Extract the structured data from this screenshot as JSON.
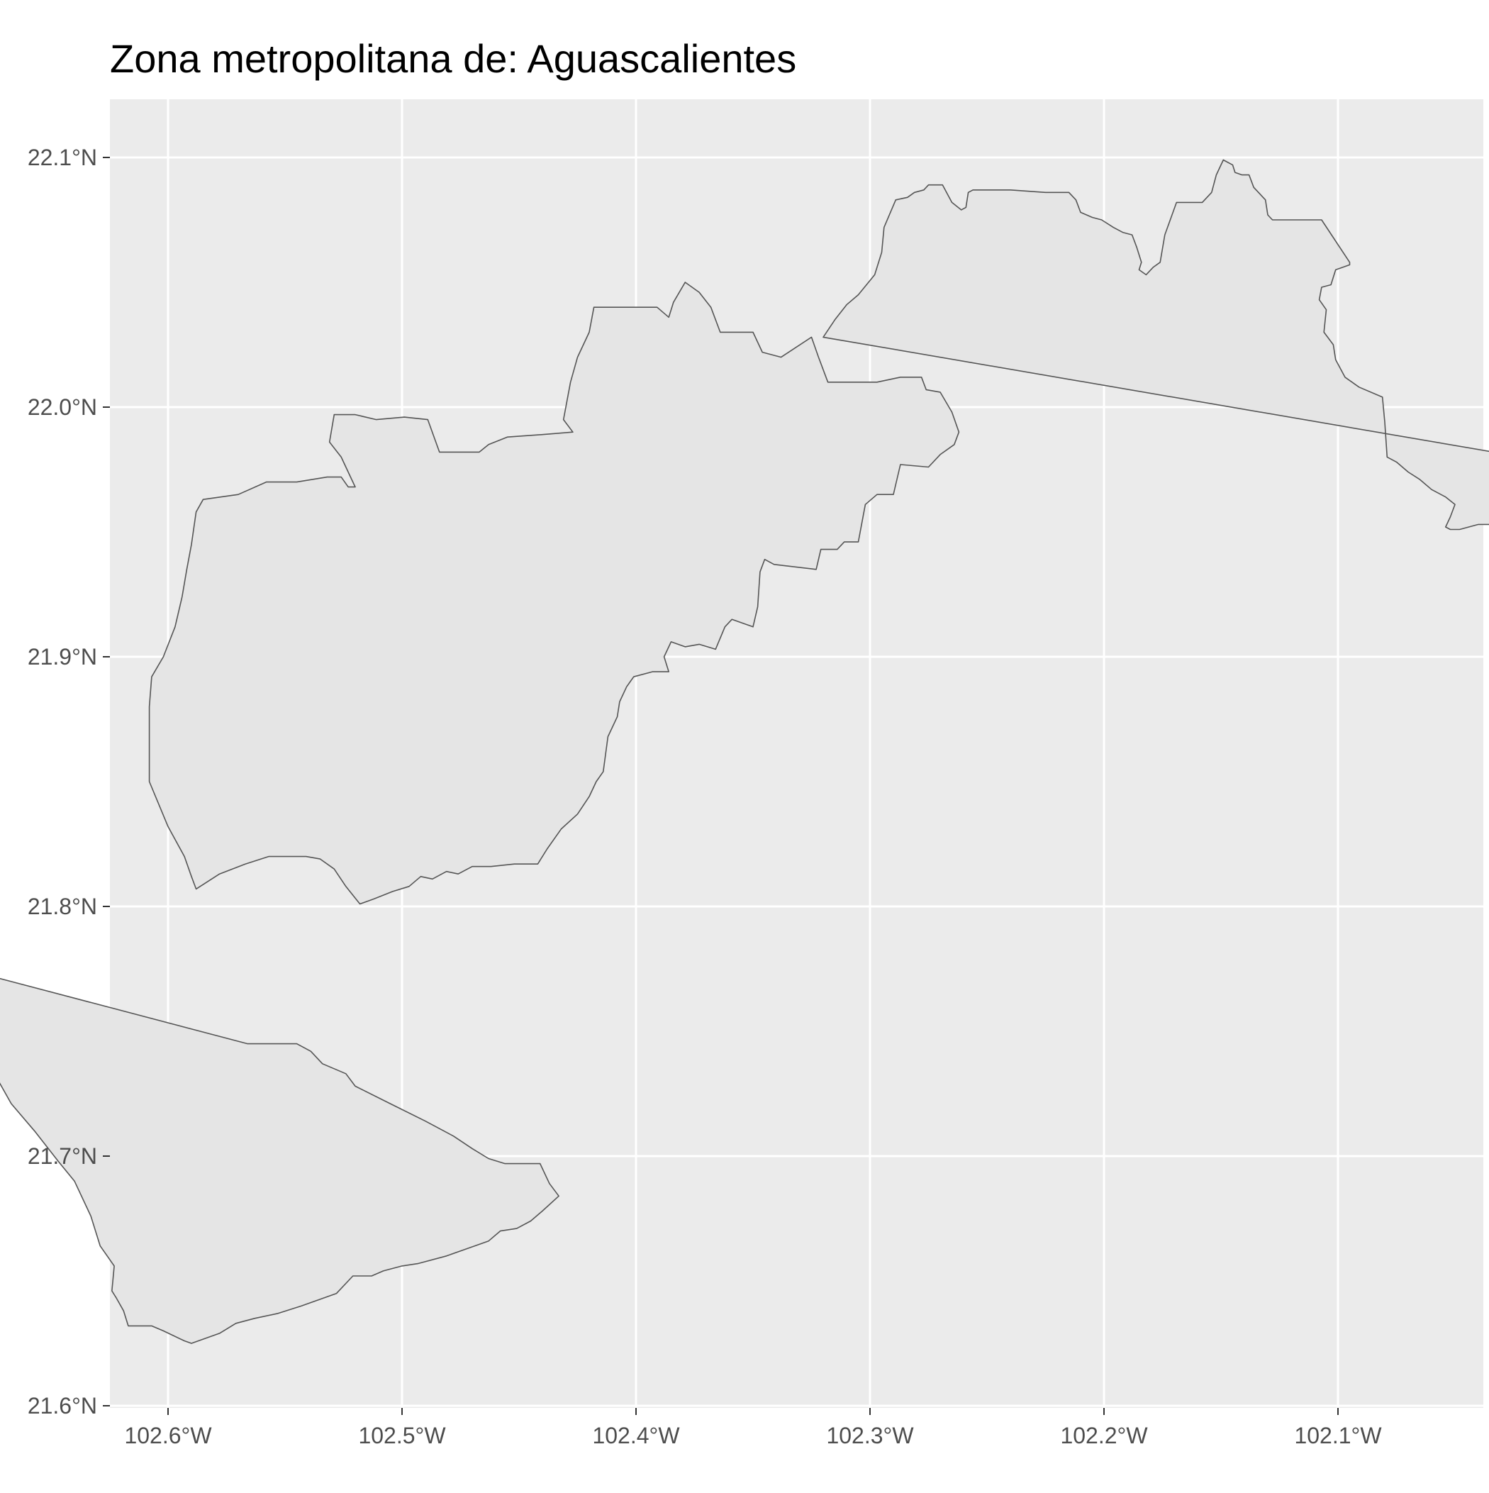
{
  "title": "Zona metropolitana de: Aguascalientes",
  "colors": {
    "panel_background": "#ebebeb",
    "gridline": "#ffffff",
    "polygon_fill": "#e5e5e5",
    "polygon_stroke": "#555555",
    "tick_text": "#4d4d4d",
    "title_text": "#000000"
  },
  "chart_data": {
    "type": "map",
    "title": "Zona metropolitana de: Aguascalientes",
    "x_ticks": [
      {
        "value": -102.6,
        "label": "102.6°W"
      },
      {
        "value": -102.5,
        "label": "102.5°W"
      },
      {
        "value": -102.4,
        "label": "102.4°W"
      },
      {
        "value": -102.3,
        "label": "102.3°W"
      },
      {
        "value": -102.2,
        "label": "102.2°W"
      },
      {
        "value": -102.1,
        "label": "102.1°W"
      }
    ],
    "y_ticks": [
      {
        "value": 21.6,
        "label": "21.6°N"
      },
      {
        "value": 21.7,
        "label": "21.7°N"
      },
      {
        "value": 21.8,
        "label": "21.8°N"
      },
      {
        "value": 21.9,
        "label": "21.9°N"
      },
      {
        "value": 22.0,
        "label": "22.0°N"
      },
      {
        "value": 22.1,
        "label": "22.1°N"
      }
    ],
    "xlim": [
      -102.624,
      -102.038
    ],
    "ylim": [
      21.597,
      22.123
    ],
    "grid": true,
    "regions": [
      {
        "coords": [
          [
            -102.588,
            21.807
          ],
          [
            -102.578,
            21.813
          ],
          [
            -102.567,
            21.817
          ],
          [
            -102.557,
            21.82
          ],
          [
            -102.548,
            21.82
          ],
          [
            -102.541,
            21.82
          ],
          [
            -102.535,
            21.819
          ],
          [
            -102.529,
            21.815
          ],
          [
            -102.524,
            21.808
          ],
          [
            -102.518,
            21.801
          ],
          [
            -102.512,
            21.803
          ],
          [
            -102.504,
            21.806
          ],
          [
            -102.497,
            21.808
          ],
          [
            -102.492,
            21.812
          ],
          [
            -102.487,
            21.811
          ],
          [
            -102.481,
            21.814
          ],
          [
            -102.476,
            21.813
          ],
          [
            -102.47,
            21.816
          ],
          [
            -102.462,
            21.816
          ],
          [
            -102.452,
            21.817
          ],
          [
            -102.442,
            21.817
          ],
          [
            -102.438,
            21.823
          ],
          [
            -102.432,
            21.831
          ],
          [
            -102.425,
            21.837
          ],
          [
            -102.42,
            21.844
          ],
          [
            -102.417,
            21.85
          ],
          [
            -102.414,
            21.854
          ],
          [
            -102.413,
            21.861
          ],
          [
            -102.412,
            21.868
          ],
          [
            -102.408,
            21.876
          ],
          [
            -102.407,
            21.882
          ],
          [
            -102.404,
            21.888
          ],
          [
            -102.401,
            21.892
          ],
          [
            -102.393,
            21.894
          ],
          [
            -102.386,
            21.894
          ],
          [
            -102.388,
            21.9
          ],
          [
            -102.385,
            21.906
          ],
          [
            -102.379,
            21.904
          ],
          [
            -102.373,
            21.905
          ],
          [
            -102.366,
            21.903
          ],
          [
            -102.362,
            21.912
          ],
          [
            -102.359,
            21.915
          ],
          [
            -102.35,
            21.912
          ],
          [
            -102.348,
            21.92
          ],
          [
            -102.347,
            21.934
          ],
          [
            -102.345,
            21.939
          ],
          [
            -102.341,
            21.937
          ],
          [
            -102.323,
            21.935
          ],
          [
            -102.321,
            21.943
          ],
          [
            -102.314,
            21.943
          ],
          [
            -102.311,
            21.946
          ],
          [
            -102.305,
            21.946
          ],
          [
            -102.302,
            21.961
          ],
          [
            -102.297,
            21.965
          ],
          [
            -102.29,
            21.965
          ],
          [
            -102.287,
            21.977
          ],
          [
            -102.275,
            21.976
          ],
          [
            -102.27,
            21.981
          ],
          [
            -102.264,
            21.985
          ],
          [
            -102.262,
            21.99
          ],
          [
            -102.265,
            21.998
          ],
          [
            -102.27,
            22.006
          ],
          [
            -102.276,
            22.007
          ],
          [
            -102.278,
            22.012
          ],
          [
            -102.287,
            22.012
          ],
          [
            -102.297,
            22.01
          ],
          [
            -102.308,
            22.01
          ],
          [
            -102.318,
            22.01
          ],
          [
            -102.322,
            22.02
          ],
          [
            -102.325,
            22.028
          ],
          [
            -102.338,
            22.02
          ],
          [
            -102.346,
            22.022
          ],
          [
            -102.35,
            22.03
          ],
          [
            -102.364,
            22.03
          ],
          [
            -102.368,
            22.04
          ],
          [
            -102.373,
            22.046
          ],
          [
            -102.379,
            22.05
          ],
          [
            -102.384,
            22.042
          ],
          [
            -102.386,
            22.036
          ],
          [
            -102.391,
            22.04
          ],
          [
            -102.4,
            22.04
          ],
          [
            -102.418,
            22.04
          ],
          [
            -102.42,
            22.03
          ],
          [
            -102.425,
            22.02
          ],
          [
            -102.428,
            22.01
          ],
          [
            -102.431,
            21.995
          ],
          [
            -102.427,
            21.99
          ],
          [
            -102.44,
            21.989
          ],
          [
            -102.455,
            21.988
          ],
          [
            -102.463,
            21.985
          ],
          [
            -102.467,
            21.982
          ],
          [
            -102.475,
            21.982
          ],
          [
            -102.484,
            21.982
          ],
          [
            -102.489,
            21.995
          ],
          [
            -102.499,
            21.996
          ],
          [
            -102.511,
            21.995
          ],
          [
            -102.52,
            21.997
          ],
          [
            -102.529,
            21.997
          ],
          [
            -102.531,
            21.986
          ],
          [
            -102.526,
            21.98
          ],
          [
            -102.522,
            21.972
          ],
          [
            -102.52,
            21.968
          ],
          [
            -102.523,
            21.968
          ],
          [
            -102.526,
            21.972
          ],
          [
            -102.532,
            21.972
          ],
          [
            -102.545,
            21.97
          ],
          [
            -102.558,
            21.97
          ],
          [
            -102.57,
            21.965
          ],
          [
            -102.585,
            21.963
          ],
          [
            -102.588,
            21.958
          ],
          [
            -102.59,
            21.945
          ],
          [
            -102.592,
            21.935
          ],
          [
            -102.594,
            21.924
          ],
          [
            -102.597,
            21.912
          ],
          [
            -102.602,
            21.9
          ],
          [
            -102.607,
            21.892
          ],
          [
            -102.608,
            21.88
          ],
          [
            -102.608,
            21.865
          ],
          [
            -102.608,
            21.85
          ],
          [
            -102.6,
            21.832
          ],
          [
            -102.593,
            21.82
          ],
          [
            -102.59,
            21.812
          ]
        ]
      },
      {
        "coords": [
          [
            -102.566,
            21.745
          ],
          [
            -102.556,
            21.745
          ],
          [
            -102.545,
            21.745
          ],
          [
            -102.539,
            21.742
          ],
          [
            -102.534,
            21.737
          ],
          [
            -102.524,
            21.733
          ],
          [
            -102.52,
            21.728
          ],
          [
            -102.505,
            21.721
          ],
          [
            -102.49,
            21.714
          ],
          [
            -102.478,
            21.708
          ],
          [
            -102.47,
            21.703
          ],
          [
            -102.463,
            21.699
          ],
          [
            -102.456,
            21.697
          ],
          [
            -102.441,
            21.697
          ],
          [
            -102.437,
            21.689
          ],
          [
            -102.433,
            21.684
          ],
          [
            -102.44,
            21.678
          ],
          [
            -102.445,
            21.674
          ],
          [
            -102.451,
            21.671
          ],
          [
            -102.458,
            21.67
          ],
          [
            -102.463,
            21.666
          ],
          [
            -102.472,
            21.663
          ],
          [
            -102.481,
            21.66
          ],
          [
            -102.493,
            21.657
          ],
          [
            -102.5,
            21.656
          ],
          [
            -102.508,
            21.654
          ],
          [
            -102.513,
            21.652
          ],
          [
            -102.521,
            21.652
          ],
          [
            -102.528,
            21.645
          ],
          [
            -102.543,
            21.64
          ],
          [
            -102.553,
            21.637
          ],
          [
            -102.563,
            21.635
          ],
          [
            -102.571,
            21.633
          ],
          [
            -102.578,
            21.629
          ],
          [
            -102.59,
            21.625
          ],
          [
            -102.593,
            21.626
          ],
          [
            -102.602,
            21.63
          ],
          [
            -102.607,
            21.632
          ],
          [
            -102.617,
            21.632
          ],
          [
            -102.619,
            21.638
          ],
          [
            -102.622,
            21.643
          ],
          [
            -102.624,
            21.646
          ],
          [
            -102.623,
            21.656
          ],
          [
            -102.629,
            21.664
          ],
          [
            -102.633,
            21.676
          ],
          [
            -102.64,
            21.69
          ],
          [
            -102.647,
            21.698
          ],
          [
            -102.657,
            21.71
          ],
          [
            -102.667,
            21.721
          ],
          [
            -102.673,
            21.731
          ],
          [
            -102.678,
            21.74
          ],
          [
            -102.685,
            21.75
          ],
          [
            -102.691,
            21.758
          ],
          [
            -102.697,
            21.765
          ],
          [
            -102.703,
            21.769
          ],
          [
            -102.711,
            21.773
          ],
          [
            -102.718,
            21.776
          ],
          [
            -102.72,
            21.783
          ]
        ]
      },
      {
        "coords": [
          [
            -102.32,
            22.028
          ],
          [
            -102.315,
            22.035
          ],
          [
            -102.31,
            22.041
          ],
          [
            -102.305,
            22.045
          ],
          [
            -102.298,
            22.053
          ],
          [
            -102.295,
            22.062
          ],
          [
            -102.294,
            22.072
          ],
          [
            -102.289,
            22.083
          ],
          [
            -102.284,
            22.084
          ],
          [
            -102.281,
            22.086
          ],
          [
            -102.277,
            22.087
          ],
          [
            -102.275,
            22.089
          ],
          [
            -102.269,
            22.089
          ],
          [
            -102.265,
            22.082
          ],
          [
            -102.261,
            22.079
          ],
          [
            -102.259,
            22.08
          ],
          [
            -102.258,
            22.086
          ],
          [
            -102.256,
            22.087
          ],
          [
            -102.24,
            22.087
          ],
          [
            -102.225,
            22.086
          ],
          [
            -102.215,
            22.086
          ],
          [
            -102.212,
            22.083
          ],
          [
            -102.21,
            22.078
          ],
          [
            -102.205,
            22.076
          ],
          [
            -102.201,
            22.075
          ],
          [
            -102.196,
            22.072
          ],
          [
            -102.192,
            22.07
          ],
          [
            -102.188,
            22.069
          ],
          [
            -102.186,
            22.064
          ],
          [
            -102.184,
            22.058
          ],
          [
            -102.185,
            22.055
          ],
          [
            -102.182,
            22.053
          ],
          [
            -102.179,
            22.056
          ],
          [
            -102.176,
            22.058
          ],
          [
            -102.174,
            22.069
          ],
          [
            -102.169,
            22.082
          ],
          [
            -102.164,
            22.082
          ],
          [
            -102.158,
            22.082
          ],
          [
            -102.154,
            22.086
          ],
          [
            -102.152,
            22.093
          ],
          [
            -102.149,
            22.099
          ],
          [
            -102.145,
            22.097
          ],
          [
            -102.144,
            22.094
          ],
          [
            -102.141,
            22.093
          ],
          [
            -102.138,
            22.093
          ],
          [
            -102.136,
            22.088
          ],
          [
            -102.131,
            22.083
          ],
          [
            -102.13,
            22.077
          ],
          [
            -102.128,
            22.075
          ],
          [
            -102.107,
            22.075
          ],
          [
            -102.095,
            22.058
          ],
          [
            -102.095,
            22.057
          ],
          [
            -102.101,
            22.055
          ],
          [
            -102.103,
            22.049
          ],
          [
            -102.107,
            22.048
          ],
          [
            -102.108,
            22.043
          ],
          [
            -102.105,
            22.039
          ],
          [
            -102.106,
            22.03
          ],
          [
            -102.102,
            22.025
          ],
          [
            -102.101,
            22.019
          ],
          [
            -102.097,
            22.012
          ],
          [
            -102.091,
            22.008
          ],
          [
            -102.081,
            22.004
          ],
          [
            -102.08,
            21.994
          ],
          [
            -102.079,
            21.98
          ],
          [
            -102.075,
            21.978
          ],
          [
            -102.07,
            21.974
          ],
          [
            -102.065,
            21.971
          ],
          [
            -102.06,
            21.967
          ],
          [
            -102.054,
            21.964
          ],
          [
            -102.05,
            21.961
          ],
          [
            -102.052,
            21.956
          ],
          [
            -102.054,
            21.952
          ],
          [
            -102.052,
            21.951
          ],
          [
            -102.048,
            21.951
          ],
          [
            -102.04,
            21.953
          ],
          [
            -102.032,
            21.953
          ],
          [
            -102.023,
            21.955
          ],
          [
            -102.018,
            21.955
          ],
          [
            -102.019,
            21.966
          ],
          [
            -102.015,
            21.967
          ],
          [
            -102.01,
            21.967
          ],
          [
            -102.005,
            21.967
          ],
          [
            -101.996,
            21.97
          ],
          [
            -101.99,
            21.975
          ]
        ]
      }
    ]
  }
}
